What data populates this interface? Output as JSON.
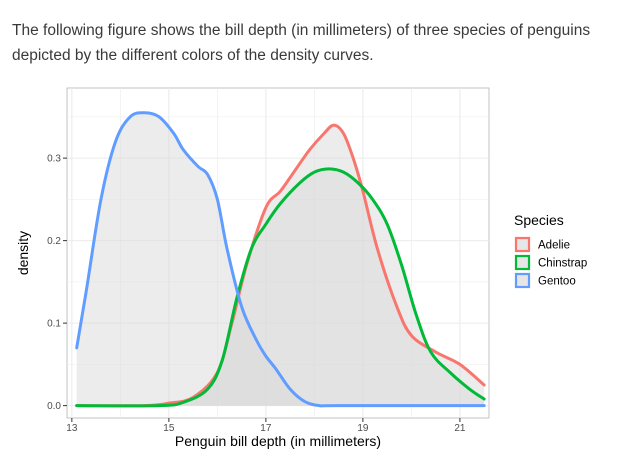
{
  "question": {
    "text": "The following figure shows the bill depth (in millimeters) of three species of penguins depicted by the different colors of the density curves."
  },
  "chart_data": {
    "type": "area",
    "title": "",
    "xlabel": "Penguin bill depth (in millimeters)",
    "ylabel": "density",
    "xlim": [
      12.9,
      21.6
    ],
    "ylim": [
      -0.015,
      0.385
    ],
    "x_ticks": [
      13,
      15,
      17,
      19,
      21
    ],
    "y_ticks": [
      0.0,
      0.1,
      0.2,
      0.3
    ],
    "y_tick_labels": [
      "0.0",
      "0.1",
      "0.2",
      "0.3"
    ],
    "legend": {
      "title": "Species",
      "position": "right"
    },
    "series": [
      {
        "name": "Adelie",
        "color": "#F8766D",
        "x": [
          13.1,
          14.5,
          15.0,
          15.5,
          16.0,
          16.3,
          16.6,
          17.0,
          17.3,
          17.6,
          17.9,
          18.2,
          18.4,
          18.6,
          18.8,
          19.0,
          19.3,
          19.7,
          20.0,
          20.5,
          21.0,
          21.5
        ],
        "y": [
          0.0,
          0.0,
          0.003,
          0.01,
          0.04,
          0.1,
          0.17,
          0.24,
          0.26,
          0.285,
          0.31,
          0.33,
          0.34,
          0.33,
          0.3,
          0.26,
          0.19,
          0.12,
          0.085,
          0.065,
          0.05,
          0.025
        ]
      },
      {
        "name": "Chinstrap",
        "color": "#00BA38",
        "x": [
          13.1,
          14.8,
          15.3,
          15.8,
          16.1,
          16.4,
          16.7,
          17.0,
          17.3,
          17.7,
          18.0,
          18.3,
          18.6,
          18.9,
          19.2,
          19.5,
          19.8,
          20.1,
          20.4,
          20.8,
          21.2,
          21.5
        ],
        "y": [
          0.0,
          0.0,
          0.004,
          0.02,
          0.055,
          0.13,
          0.19,
          0.22,
          0.245,
          0.27,
          0.283,
          0.287,
          0.283,
          0.27,
          0.25,
          0.22,
          0.17,
          0.11,
          0.065,
          0.04,
          0.02,
          0.008
        ]
      },
      {
        "name": "Gentoo",
        "color": "#619CFF",
        "x": [
          13.1,
          13.3,
          13.6,
          13.9,
          14.2,
          14.5,
          14.8,
          15.1,
          15.3,
          15.6,
          15.8,
          16.0,
          16.2,
          16.5,
          16.8,
          17.0,
          17.2,
          17.5,
          17.8,
          18.1,
          18.5,
          21.5
        ],
        "y": [
          0.07,
          0.14,
          0.25,
          0.32,
          0.35,
          0.355,
          0.35,
          0.33,
          0.31,
          0.29,
          0.28,
          0.25,
          0.19,
          0.12,
          0.08,
          0.06,
          0.045,
          0.02,
          0.005,
          0.0,
          0.0,
          0.0
        ]
      }
    ]
  }
}
